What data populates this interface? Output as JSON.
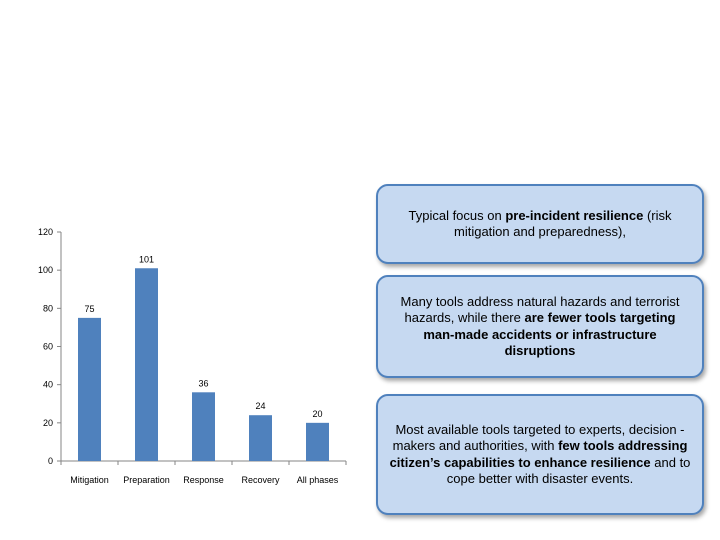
{
  "chart_data": {
    "type": "bar",
    "categories": [
      "Mitigation",
      "Preparation",
      "Response",
      "Recovery",
      "All phases"
    ],
    "values": [
      75,
      101,
      36,
      24,
      20
    ],
    "data_labels": [
      "75",
      "101",
      "36",
      "24",
      "20"
    ],
    "y_ticks": [
      0,
      20,
      40,
      60,
      80,
      100,
      120
    ],
    "ylim": [
      0,
      120
    ],
    "grid": false,
    "bar_color": "#4f81bd",
    "title": "",
    "xlabel": "",
    "ylabel": ""
  },
  "callouts": [
    {
      "segments": [
        {
          "text": "Typical focus on ",
          "bold": false
        },
        {
          "text": "pre-incident resilience",
          "bold": true
        },
        {
          "text": " (risk mitigation and preparedness),",
          "bold": false
        }
      ]
    },
    {
      "segments": [
        {
          "text": "Many tools address natural hazards and terrorist hazards, while there ",
          "bold": false
        },
        {
          "text": "are fewer tools targeting man-made accidents or infrastructure disruptions",
          "bold": true
        }
      ]
    },
    {
      "segments": [
        {
          "text": "Most available tools targeted to experts, decision -makers and authorities, with ",
          "bold": false
        },
        {
          "text": "few tools addressing citizen’s capabilities to enhance resilience",
          "bold": true
        },
        {
          "text": " and to cope better with disaster events.",
          "bold": false
        }
      ]
    }
  ],
  "colors": {
    "callout_fill": "#c6d9f1",
    "callout_border": "#4f81bd"
  }
}
